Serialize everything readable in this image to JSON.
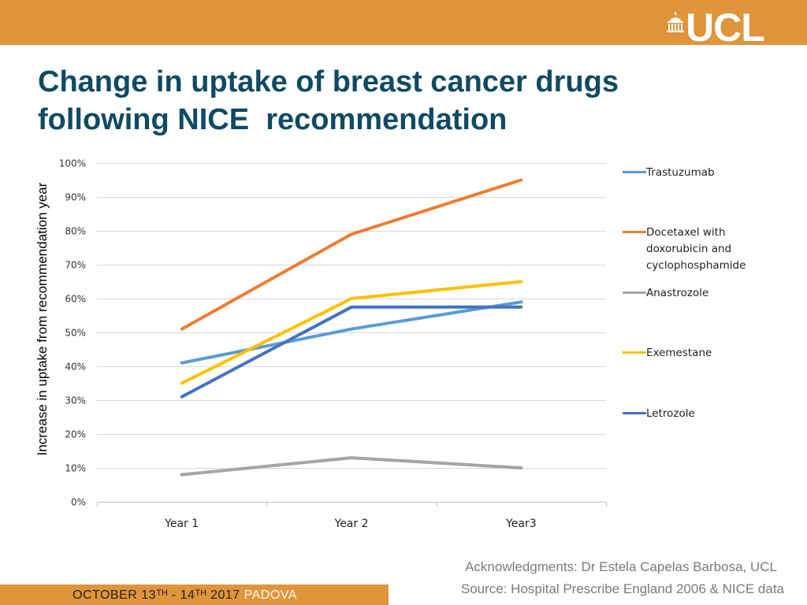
{
  "brand": {
    "logo_text": "UCL",
    "bar_color": "#e0953a",
    "logo_icon": "portico-dome-icon"
  },
  "slide": {
    "title_line1": "Change in uptake of breast cancer drugs",
    "title_line2": "following NICE  recommendation",
    "title_color": "#0f4a63"
  },
  "chart_data": {
    "type": "line",
    "categories": [
      "Year 1",
      "Year 2",
      "Year3"
    ],
    "ylabel": "Increase in uptake from recommendation year",
    "xlabel": "",
    "ylim": [
      0,
      100
    ],
    "ytick_step": 10,
    "ytick_format": "percent",
    "grid": true,
    "legend_position": "right",
    "series": [
      {
        "name": "Trastuzumab",
        "color": "#5b9bd5",
        "values": [
          41,
          51,
          59
        ]
      },
      {
        "name": "Docetaxel  with\ndoxorubicin and\ncyclophosphamide",
        "color": "#ed7d31",
        "values": [
          51,
          79,
          95
        ]
      },
      {
        "name": "Anastrozole",
        "color": "#a5a5a5",
        "values": [
          8,
          13,
          10
        ]
      },
      {
        "name": "Exemestane",
        "color": "#ffc000",
        "values": [
          35,
          60,
          65
        ]
      },
      {
        "name": "Letrozole",
        "color": "#4472c4",
        "values": [
          31,
          57.5,
          57.5
        ]
      }
    ]
  },
  "footer": {
    "acknowledgment": "Acknowledgments: Dr Estela Capelas Barbosa, UCL",
    "source": "Source: Hospital Prescribe England 2006 & NICE data",
    "event_date": "OCTOBER 13ᵀᴴ - 14ᵀᴴ 2017",
    "event_place": "PADOVA"
  }
}
